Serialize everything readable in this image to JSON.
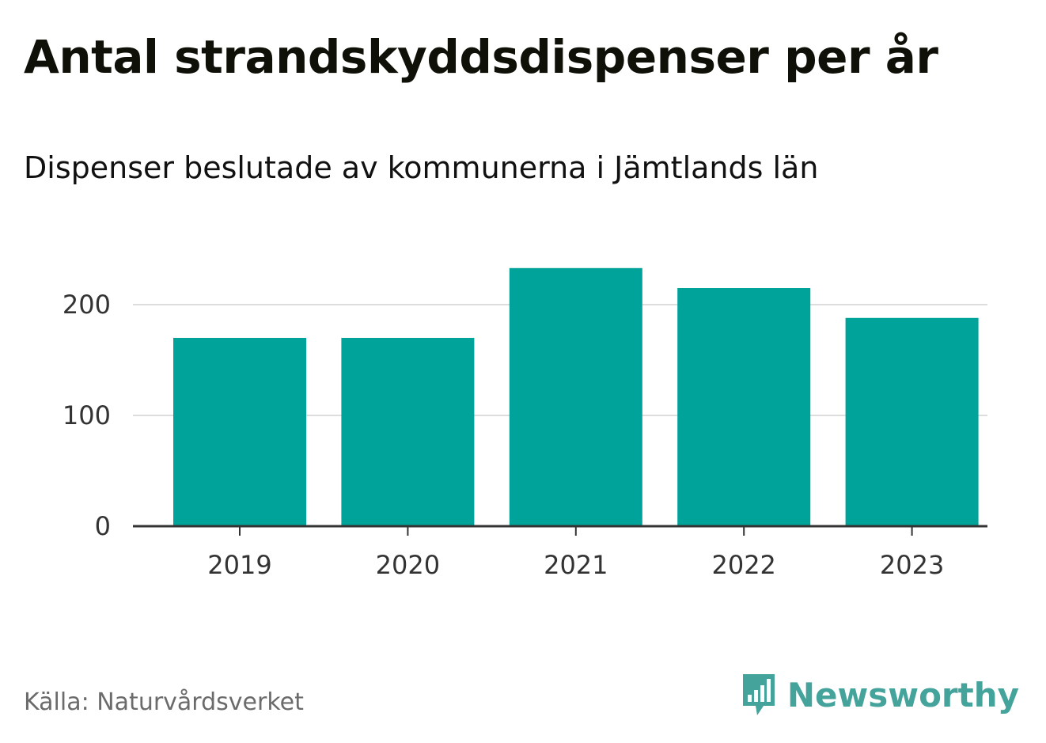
{
  "title": "Antal strandskyddsdispenser per år",
  "subtitle": "Dispenser beslutade av kommunerna i Jämtlands län",
  "source": "Källa: Naturvårdsverket",
  "brand": {
    "name": "Newsworthy",
    "icon": "newsworthy-logo-icon",
    "color": "#44a39b"
  },
  "colors": {
    "bar": "#00a39a",
    "grid": "#dddddd",
    "axis": "#333333"
  },
  "chart_data": {
    "type": "bar",
    "title": "Antal strandskyddsdispenser per år",
    "subtitle": "Dispenser beslutade av kommunerna i Jämtlands län",
    "categories": [
      "2019",
      "2020",
      "2021",
      "2022",
      "2023"
    ],
    "values": [
      170,
      170,
      233,
      215,
      188
    ],
    "xlabel": "",
    "ylabel": "",
    "ylim": [
      0,
      250
    ],
    "yticks": [
      0,
      100,
      200
    ],
    "grid": true,
    "legend": "none"
  }
}
